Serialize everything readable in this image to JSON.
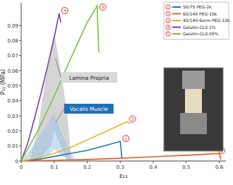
{
  "chart_data": {
    "type": "line",
    "x_label": "ε₁₁",
    "y_label": "P₁₁ (MPa)",
    "xlim": [
      0,
      0.62
    ],
    "xticks": [
      0,
      0.1,
      0.2,
      0.3,
      0.4,
      0.5,
      0.6
    ],
    "ylim": [
      0,
      0.105
    ],
    "yticks": [
      0,
      0.01,
      0.02,
      0.03,
      0.04,
      0.05,
      0.06,
      0.07,
      0.08,
      0.09
    ],
    "legend": "top-right",
    "series": [
      {
        "name": "50/75  PEG-2k",
        "label": "1",
        "color": "#1f77b4",
        "x": [
          0,
          0.05,
          0.1,
          0.15,
          0.2,
          0.25,
          0.3,
          0.305
        ],
        "values": [
          0,
          0.001,
          0.003,
          0.005,
          0.007,
          0.01,
          0.013,
          0.002
        ]
      },
      {
        "name": "60/140 PEG-10k",
        "label": "2",
        "color": "#e8601c",
        "x": [
          0,
          0.1,
          0.2,
          0.3,
          0.4,
          0.5,
          0.6,
          0.605
        ],
        "values": [
          0,
          0.0005,
          0.001,
          0.0018,
          0.0028,
          0.0038,
          0.005,
          0.001
        ]
      },
      {
        "name": "40/140-6arm-PEG-10k",
        "label": "3",
        "color": "#e6b422",
        "x": [
          0,
          0.05,
          0.1,
          0.15,
          0.2,
          0.25,
          0.3,
          0.32,
          0.33
        ],
        "values": [
          0,
          0.002,
          0.005,
          0.009,
          0.014,
          0.019,
          0.024,
          0.026,
          0.025
        ]
      },
      {
        "name": "Gelatin-CL0.1%",
        "label": "4",
        "color": "#7b3fa0",
        "x": [
          0,
          0.02,
          0.04,
          0.06,
          0.08,
          0.1,
          0.115,
          0.12
        ],
        "values": [
          0,
          0.012,
          0.028,
          0.045,
          0.063,
          0.082,
          0.098,
          0.092
        ]
      },
      {
        "name": "Gelatin-CL0.05%",
        "label": "5",
        "color": "#7cc142",
        "x": [
          0,
          0.05,
          0.1,
          0.15,
          0.2,
          0.23,
          0.235
        ],
        "values": [
          0,
          0.02,
          0.043,
          0.068,
          0.092,
          0.103,
          0.072
        ]
      }
    ],
    "bands": [
      {
        "name": "Lamina Propria",
        "color": "#b0b0b0",
        "x": [
          0.03,
          0.05,
          0.07,
          0.09,
          0.1,
          0.12,
          0.14,
          0.15
        ],
        "upper": [
          0.005,
          0.02,
          0.05,
          0.075,
          0.085,
          0.06,
          0.03,
          0.005
        ],
        "lower": [
          0,
          0,
          0.005,
          0.01,
          0.02,
          0.01,
          0,
          0
        ]
      },
      {
        "name": "Vocalis Muscle",
        "color": "#9cc3e6",
        "x": [
          0,
          0.03,
          0.06,
          0.09,
          0.1,
          0.12,
          0.14,
          0.16
        ],
        "upper": [
          0,
          0.008,
          0.018,
          0.028,
          0.032,
          0.02,
          0.01,
          0.002
        ],
        "lower": [
          0,
          0,
          0.002,
          0.005,
          0.008,
          0.004,
          0.001,
          0
        ]
      }
    ]
  }
}
